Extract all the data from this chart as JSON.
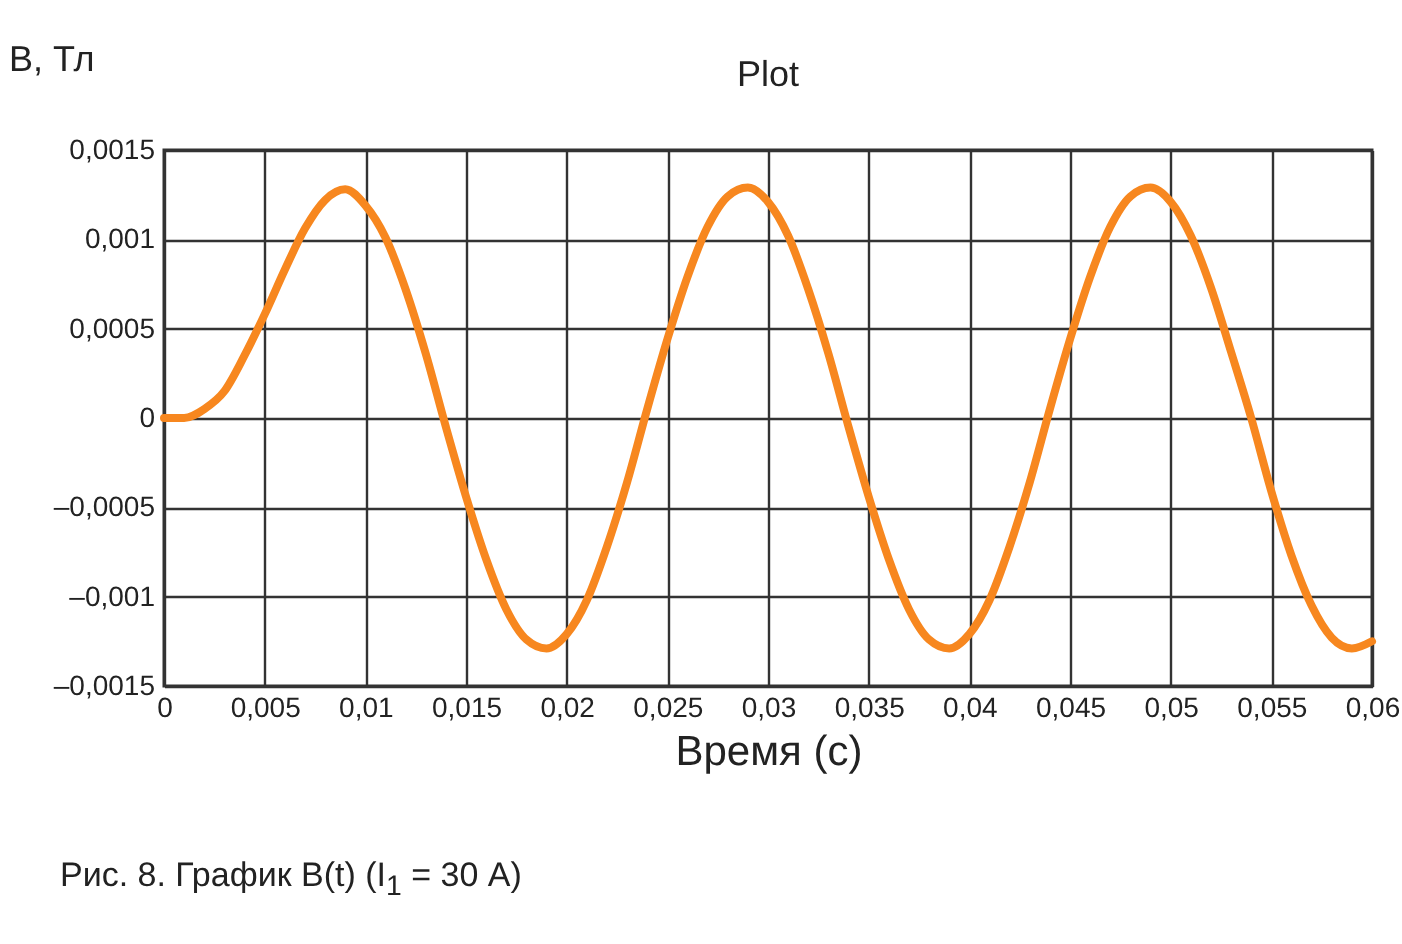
{
  "chart_data": {
    "type": "line",
    "title": "Plot",
    "xlabel": "Время (с)",
    "ylabel": "B, Тл",
    "annotations": [
      "Рис. 8. График B(t) (I$_{1}$ = 30 А)"
    ],
    "x": [
      0,
      0.001,
      0.002,
      0.003,
      0.004,
      0.005,
      0.006,
      0.007,
      0.008,
      0.009,
      0.01,
      0.011,
      0.012,
      0.013,
      0.014,
      0.015,
      0.016,
      0.017,
      0.018,
      0.019,
      0.02,
      0.021,
      0.022,
      0.023,
      0.024,
      0.025,
      0.026,
      0.027,
      0.028,
      0.029,
      0.03,
      0.031,
      0.032,
      0.033,
      0.034,
      0.035,
      0.036,
      0.037,
      0.038,
      0.039,
      0.04,
      0.041,
      0.042,
      0.043,
      0.044,
      0.045,
      0.046,
      0.047,
      0.048,
      0.049,
      0.05,
      0.051,
      0.052,
      0.053,
      0.054,
      0.055,
      0.056,
      0.057,
      0.058,
      0.059,
      0.06
    ],
    "series": [
      {
        "color": "#f7871f",
        "values": [
          0,
          0,
          5e-05,
          0.00015,
          0.00035,
          0.00058,
          0.00083,
          0.00106,
          0.00122,
          0.00128,
          0.00119,
          0.00101,
          0.00072,
          0.00036,
          -5e-05,
          -0.00044,
          -0.00079,
          -0.00107,
          -0.00124,
          -0.00129,
          -0.00121,
          -0.00102,
          -0.00072,
          -0.00036,
          5e-05,
          0.00044,
          0.00079,
          0.00107,
          0.00124,
          0.00129,
          0.00121,
          0.00102,
          0.00072,
          0.00036,
          -5e-05,
          -0.00044,
          -0.00079,
          -0.00107,
          -0.00124,
          -0.00129,
          -0.00121,
          -0.00102,
          -0.00072,
          -0.00036,
          5e-05,
          0.00044,
          0.00079,
          0.00107,
          0.00124,
          0.00129,
          0.00121,
          0.00102,
          0.00073,
          0.00037,
          0,
          -0.00041,
          -0.00077,
          -0.00105,
          -0.00123,
          -0.00129,
          -0.00125
        ]
      }
    ],
    "xlim": [
      0,
      0.06
    ],
    "ylim": [
      -0.0015,
      0.0015
    ],
    "xticks": [
      0,
      {
        "value": 0.005,
        "label": "0,005"
      },
      {
        "value": 0.01,
        "label": "0,01"
      },
      {
        "value": 0.015,
        "label": "0,015"
      },
      {
        "value": 0.02,
        "label": "0,02"
      },
      {
        "value": 0.025,
        "label": "0,025"
      },
      {
        "value": 0.03,
        "label": "0,03"
      },
      {
        "value": 0.035,
        "label": "0,035"
      },
      {
        "value": 0.04,
        "label": "0,04"
      },
      {
        "value": 0.045,
        "label": "0,045"
      },
      {
        "value": 0.05,
        "label": "0,05"
      },
      {
        "value": 0.055,
        "label": "0,055"
      },
      {
        "value": 0.06,
        "label": "0,06"
      }
    ],
    "yticks": [
      {
        "value": -0.0015,
        "label": "–0,0015"
      },
      {
        "value": -0.001,
        "label": "–0,001"
      },
      {
        "value": -0.0005,
        "label": "–0,0005"
      },
      0,
      {
        "value": 0.0005,
        "label": "0,0005"
      },
      {
        "value": 0.001,
        "label": "0,001"
      },
      {
        "value": 0.0015,
        "label": "0,0015"
      }
    ],
    "grid": true,
    "line_style": "solid"
  }
}
